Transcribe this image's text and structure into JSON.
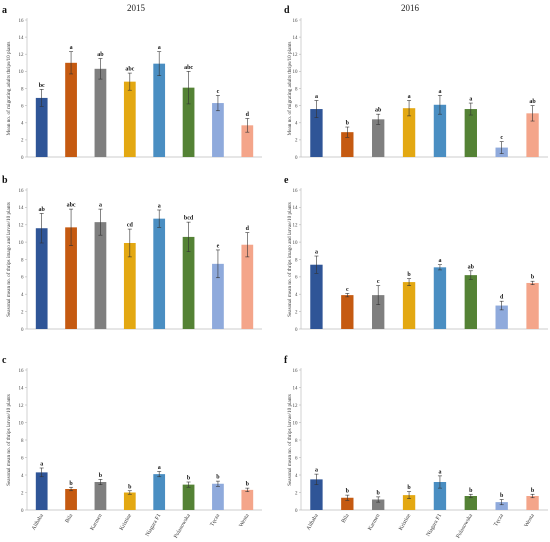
{
  "years": [
    "2015",
    "2016"
  ],
  "colors": [
    "#2f5597",
    "#c55a11",
    "#7f7f7f",
    "#e3a812",
    "#4a8ec2",
    "#548235",
    "#8faadc",
    "#f4a58a"
  ],
  "chart_data": [
    {
      "type": "bar",
      "panel": "a",
      "year": "2015",
      "title": "",
      "ylabel": "Mean no. of migrating adults thrips/10 plants",
      "ylim": [
        0,
        16
      ],
      "yticks": [
        0,
        2,
        4,
        6,
        8,
        10,
        12,
        14,
        16
      ],
      "categories": [
        "Alibaba",
        "Bila",
        "Karmen",
        "Kristine",
        "Niagara F1",
        "Polanowska",
        "Tęcza",
        "Wenta"
      ],
      "values": [
        6.9,
        11.0,
        10.3,
        8.8,
        10.9,
        8.1,
        6.3,
        3.7
      ],
      "errors": [
        1.0,
        1.3,
        1.2,
        1.0,
        1.4,
        1.9,
        0.9,
        0.8
      ],
      "significance": [
        "bc",
        "a",
        "ab",
        "abc",
        "a",
        "abc",
        "c",
        "d"
      ],
      "show_x_labels": false
    },
    {
      "type": "bar",
      "panel": "b",
      "year": "2015",
      "title": "",
      "ylabel": "Seasonal mean no. of thrips imago and larvae/10 plants",
      "ylim": [
        0,
        16
      ],
      "yticks": [
        0,
        2,
        4,
        6,
        8,
        10,
        12,
        14,
        16
      ],
      "categories": [
        "Alibaba",
        "Bila",
        "Karmen",
        "Kristine",
        "Niagara F1",
        "Polanowska",
        "Tęcza",
        "Wenta"
      ],
      "values": [
        11.6,
        11.7,
        12.3,
        9.9,
        12.7,
        10.6,
        7.5,
        9.7
      ],
      "errors": [
        1.7,
        2.1,
        1.5,
        1.6,
        1.0,
        1.7,
        1.6,
        1.4
      ],
      "significance": [
        "ab",
        "abc",
        "a",
        "cd",
        "a",
        "bcd",
        "e",
        "d"
      ],
      "show_x_labels": false
    },
    {
      "type": "bar",
      "panel": "c",
      "year": "2015",
      "title": "",
      "ylabel": "Seasonal mean no. of thrips larvae/10 plants",
      "ylim": [
        0,
        16
      ],
      "yticks": [
        0,
        2,
        4,
        6,
        8,
        10,
        12,
        14,
        16
      ],
      "categories": [
        "Alibaba",
        "Bila",
        "Karmen",
        "Kristine",
        "Niagara F1",
        "Polanowska",
        "Tęcza",
        "Wenta"
      ],
      "values": [
        4.3,
        2.4,
        3.2,
        2.0,
        4.1,
        2.9,
        3.0,
        2.3
      ],
      "errors": [
        0.5,
        0.2,
        0.3,
        0.2,
        0.3,
        0.3,
        0.3,
        0.2
      ],
      "significance": [
        "a",
        "b",
        "b",
        "b",
        "a",
        "b",
        "b",
        "b"
      ],
      "show_x_labels": true
    },
    {
      "type": "bar",
      "panel": "d",
      "year": "2016",
      "title": "",
      "ylabel": "Mean no. of migrating adults thrips/10 plants",
      "ylim": [
        0,
        16
      ],
      "yticks": [
        0,
        2,
        4,
        6,
        8,
        10,
        12,
        14,
        16
      ],
      "categories": [
        "Alibaba",
        "Bila",
        "Karmen",
        "Kristine",
        "Niagara F1",
        "Polanowska",
        "Tęcza",
        "Wenta"
      ],
      "values": [
        5.6,
        2.9,
        4.4,
        5.7,
        6.1,
        5.6,
        1.1,
        5.1
      ],
      "errors": [
        1.0,
        0.6,
        0.6,
        0.9,
        1.1,
        0.7,
        0.7,
        0.9
      ],
      "significance": [
        "a",
        "b",
        "ab",
        "a",
        "a",
        "a",
        "c",
        "ab"
      ],
      "show_x_labels": false
    },
    {
      "type": "bar",
      "panel": "e",
      "year": "2016",
      "title": "",
      "ylabel": "Seasonal mean no. of thrips imago and larvae/10 plants",
      "ylim": [
        0,
        16
      ],
      "yticks": [
        0,
        2,
        4,
        6,
        8,
        10,
        12,
        14,
        16
      ],
      "categories": [
        "Alibaba",
        "Bila",
        "Karmen",
        "Kristine",
        "Niagara F1",
        "Polanowska",
        "Tęcza",
        "Wenta"
      ],
      "values": [
        7.4,
        3.9,
        3.9,
        5.4,
        7.1,
        6.2,
        2.7,
        5.3
      ],
      "errors": [
        1.0,
        0.2,
        1.1,
        0.4,
        0.3,
        0.5,
        0.5,
        0.2
      ],
      "significance": [
        "a",
        "c",
        "c",
        "b",
        "a",
        "ab",
        "d",
        "b"
      ],
      "show_x_labels": false
    },
    {
      "type": "bar",
      "panel": "f",
      "year": "2016",
      "title": "",
      "ylabel": "Seasonal mean no. of thrips larvae/10 plants",
      "ylim": [
        0,
        16
      ],
      "yticks": [
        0,
        2,
        4,
        6,
        8,
        10,
        12,
        14,
        16
      ],
      "categories": [
        "Alibaba",
        "Bila",
        "Karmen",
        "Kristine",
        "Niagara F1",
        "Polanowska",
        "Tęcza",
        "Wenta"
      ],
      "values": [
        3.5,
        1.4,
        1.2,
        1.7,
        3.2,
        1.6,
        0.9,
        1.6
      ],
      "errors": [
        0.6,
        0.3,
        0.3,
        0.4,
        0.7,
        0.2,
        0.3,
        0.2
      ],
      "significance": [
        "a",
        "b",
        "b",
        "b",
        "a",
        "b",
        "b",
        "b"
      ],
      "show_x_labels": true
    }
  ]
}
